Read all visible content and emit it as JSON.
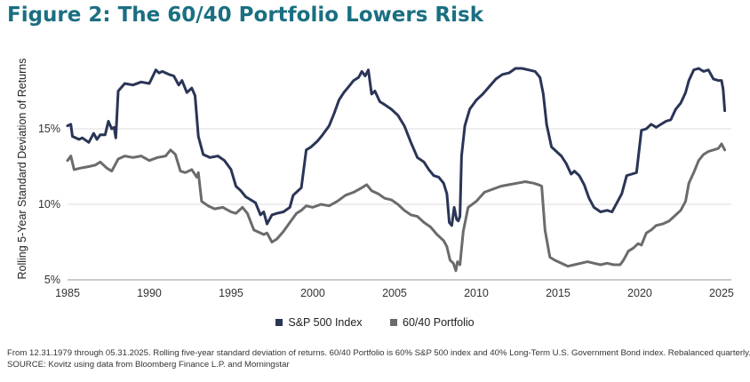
{
  "title": "Figure 2: The 60/40 Portfolio Lowers Risk",
  "colors": {
    "title": "#1a6f82",
    "sp500": "#2a3556",
    "portfolio": "#6b6b6b",
    "grid": "#dcdcdc",
    "axis": "#999999"
  },
  "chart_data": {
    "type": "line",
    "ylabel": "Rolling 5-Year Standard Deviation of Returns",
    "xlim": [
      1985,
      2025.6
    ],
    "ylim": [
      5,
      20
    ],
    "xticks": [
      "1985",
      "1990",
      "1995",
      "2000",
      "2005",
      "2010",
      "2015",
      "2020",
      "2025"
    ],
    "yticks": [
      {
        "value": 5,
        "label": "5%"
      },
      {
        "value": 10,
        "label": "10%"
      },
      {
        "value": 15,
        "label": "15%"
      }
    ],
    "series": [
      {
        "name": "S&P 500 Index",
        "x": [
          1985.0,
          1985.2,
          1985.3,
          1985.7,
          1985.9,
          1986.3,
          1986.6,
          1986.8,
          1987.0,
          1987.3,
          1987.5,
          1987.7,
          1987.85,
          1987.95,
          1988.1,
          1988.5,
          1989.0,
          1989.5,
          1990.0,
          1990.4,
          1990.6,
          1990.8,
          1991.2,
          1991.5,
          1991.8,
          1992.0,
          1992.3,
          1992.6,
          1992.8,
          1993.0,
          1993.3,
          1993.7,
          1994.2,
          1994.6,
          1995.0,
          1995.3,
          1995.6,
          1995.9,
          1996.2,
          1996.5,
          1996.8,
          1997.0,
          1997.2,
          1997.5,
          1997.8,
          1998.2,
          1998.6,
          1998.8,
          1999.0,
          1999.3,
          1999.6,
          1999.9,
          2000.3,
          2000.6,
          2001.0,
          2001.3,
          2001.6,
          2001.9,
          2002.2,
          2002.5,
          2002.8,
          2003.0,
          2003.2,
          2003.4,
          2003.6,
          2003.8,
          2004.1,
          2004.4,
          2004.8,
          2005.2,
          2005.6,
          2006.0,
          2006.4,
          2006.8,
          2007.1,
          2007.4,
          2007.7,
          2008.0,
          2008.2,
          2008.35,
          2008.5,
          2008.65,
          2008.8,
          2008.9,
          2009.0,
          2009.1,
          2009.3,
          2009.6,
          2010.0,
          2010.4,
          2010.8,
          2011.2,
          2011.6,
          2012.0,
          2012.4,
          2012.8,
          2013.2,
          2013.6,
          2013.9,
          2014.1,
          2014.3,
          2014.6,
          2014.9,
          2015.2,
          2015.5,
          2015.8,
          2016.0,
          2016.3,
          2016.6,
          2016.9,
          2017.2,
          2017.6,
          2018.0,
          2018.3,
          2018.6,
          2018.9,
          2019.2,
          2019.5,
          2019.8,
          2020.1,
          2020.4,
          2020.7,
          2021.0,
          2021.3,
          2021.6,
          2021.9,
          2022.2,
          2022.5,
          2022.8,
          2023.0,
          2023.3,
          2023.6,
          2023.9,
          2024.2,
          2024.5,
          2024.8,
          2025.0,
          2025.1,
          2025.2
        ],
        "values": [
          15.2,
          15.3,
          14.5,
          14.3,
          14.4,
          14.1,
          14.7,
          14.3,
          14.6,
          14.6,
          15.5,
          15.0,
          15.1,
          14.4,
          17.5,
          18.0,
          17.9,
          18.1,
          18.0,
          18.9,
          18.7,
          18.8,
          18.6,
          18.5,
          17.9,
          18.2,
          17.4,
          17.7,
          17.2,
          14.5,
          13.3,
          13.1,
          13.2,
          12.9,
          12.3,
          11.2,
          10.9,
          10.5,
          10.3,
          10.1,
          9.3,
          9.5,
          8.7,
          9.3,
          9.4,
          9.5,
          9.8,
          10.6,
          10.8,
          11.1,
          13.6,
          13.8,
          14.2,
          14.6,
          15.2,
          16.0,
          16.9,
          17.4,
          17.8,
          18.2,
          18.4,
          18.8,
          18.5,
          18.9,
          17.3,
          17.5,
          16.8,
          16.6,
          16.3,
          15.9,
          15.2,
          14.1,
          13.1,
          12.8,
          12.3,
          11.9,
          11.8,
          11.4,
          10.7,
          8.8,
          8.6,
          9.8,
          9.0,
          8.9,
          9.2,
          13.2,
          15.2,
          16.3,
          16.9,
          17.3,
          17.8,
          18.3,
          18.6,
          18.7,
          19.0,
          19.0,
          18.9,
          18.8,
          18.4,
          17.3,
          15.3,
          13.8,
          13.5,
          13.2,
          12.7,
          12.0,
          12.2,
          11.9,
          11.3,
          10.4,
          9.8,
          9.5,
          9.6,
          9.5,
          10.1,
          10.7,
          11.9,
          12.0,
          12.1,
          14.9,
          15.0,
          15.3,
          15.1,
          15.3,
          15.5,
          15.6,
          16.3,
          16.7,
          17.4,
          18.2,
          18.9,
          19.0,
          18.8,
          18.9,
          18.3,
          18.2,
          18.2,
          17.6,
          16.2
        ]
      },
      {
        "name": "60/40 Portfolio",
        "x": [
          1985.0,
          1985.2,
          1985.4,
          1985.8,
          1986.3,
          1986.7,
          1987.0,
          1987.4,
          1987.7,
          1987.9,
          1988.1,
          1988.5,
          1989.0,
          1989.5,
          1990.0,
          1990.5,
          1991.0,
          1991.3,
          1991.6,
          1991.9,
          1992.2,
          1992.6,
          1992.9,
          1993.0,
          1993.2,
          1993.6,
          1994.0,
          1994.5,
          1995.0,
          1995.3,
          1995.7,
          1996.0,
          1996.4,
          1996.8,
          1997.0,
          1997.2,
          1997.5,
          1997.8,
          1998.2,
          1998.6,
          1999.0,
          1999.3,
          1999.6,
          2000.0,
          2000.5,
          2001.0,
          2001.5,
          2002.0,
          2002.5,
          2003.0,
          2003.3,
          2003.6,
          2004.0,
          2004.4,
          2004.8,
          2005.2,
          2005.6,
          2006.0,
          2006.4,
          2006.8,
          2007.2,
          2007.6,
          2008.0,
          2008.2,
          2008.4,
          2008.6,
          2008.75,
          2008.85,
          2009.0,
          2009.2,
          2009.5,
          2010.0,
          2010.5,
          2011.0,
          2011.5,
          2012.0,
          2012.5,
          2013.0,
          2013.5,
          2013.8,
          2014.0,
          2014.2,
          2014.5,
          2014.8,
          2015.2,
          2015.6,
          2016.0,
          2016.4,
          2016.8,
          2017.2,
          2017.6,
          2018.0,
          2018.4,
          2018.8,
          2019.0,
          2019.3,
          2019.6,
          2019.9,
          2020.1,
          2020.4,
          2020.7,
          2021.0,
          2021.4,
          2021.8,
          2022.1,
          2022.5,
          2022.8,
          2023.0,
          2023.3,
          2023.6,
          2023.9,
          2024.2,
          2024.5,
          2024.8,
          2025.0,
          2025.2
        ],
        "values": [
          12.9,
          13.2,
          12.3,
          12.4,
          12.5,
          12.6,
          12.8,
          12.4,
          12.2,
          12.6,
          13.0,
          13.2,
          13.1,
          13.2,
          12.9,
          13.1,
          13.2,
          13.6,
          13.3,
          12.2,
          12.1,
          12.3,
          11.8,
          12.1,
          10.2,
          9.9,
          9.7,
          9.8,
          9.5,
          9.4,
          9.8,
          9.4,
          8.3,
          8.1,
          8.0,
          8.1,
          7.5,
          7.7,
          8.2,
          8.8,
          9.4,
          9.6,
          9.9,
          9.8,
          10.0,
          9.9,
          10.2,
          10.6,
          10.8,
          11.1,
          11.3,
          10.9,
          10.7,
          10.4,
          10.3,
          10.0,
          9.6,
          9.3,
          9.2,
          8.8,
          8.5,
          8.0,
          7.6,
          7.2,
          6.3,
          6.1,
          5.6,
          6.2,
          6.0,
          8.2,
          9.8,
          10.2,
          10.8,
          11.0,
          11.2,
          11.3,
          11.4,
          11.5,
          11.4,
          11.3,
          11.2,
          8.3,
          6.5,
          6.3,
          6.1,
          5.9,
          6.0,
          6.1,
          6.2,
          6.1,
          6.0,
          6.1,
          6.0,
          6.0,
          6.3,
          6.9,
          7.1,
          7.4,
          7.3,
          8.1,
          8.3,
          8.6,
          8.7,
          8.9,
          9.2,
          9.6,
          10.2,
          11.4,
          12.1,
          12.9,
          13.3,
          13.5,
          13.6,
          13.7,
          14.0,
          13.6
        ]
      }
    ]
  },
  "footnote": {
    "line1": "From 12.31.1979 through 05.31.2025. Rolling five-year standard deviation of returns. 60/40 Portfolio is 60% S&P 500 index and 40% Long-Term U.S. Government Bond index. Rebalanced quarterly.",
    "line2": "SOURCE: Kovitz using data from Bloomberg Finance L.P. and Morningstar"
  }
}
